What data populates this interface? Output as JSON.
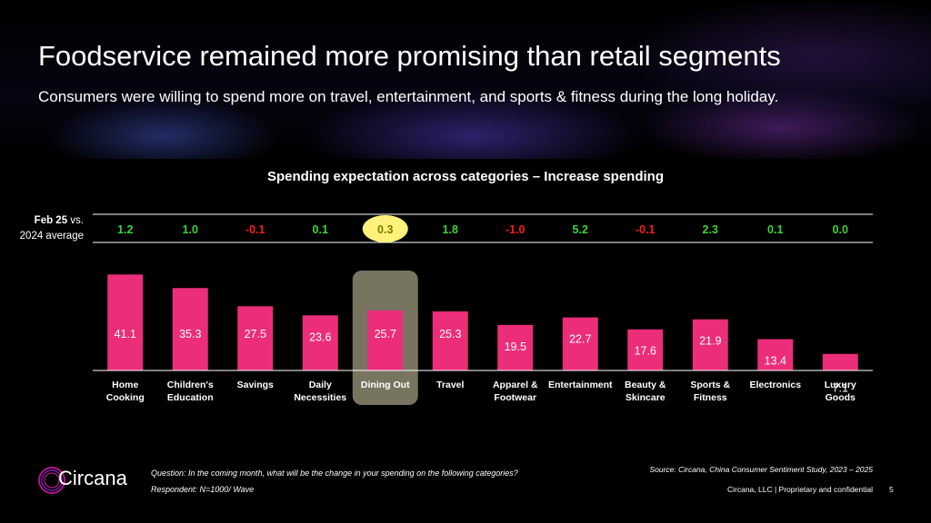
{
  "header": {
    "title": "Foodservice remained more promising than retail segments",
    "subtitle": "Consumers were willing to spend more on travel, entertainment, and sports & fitness during the long holiday."
  },
  "comparison": {
    "label_bold": "Feb 25",
    "label_rest": " vs.",
    "label_line2": "2024 average"
  },
  "chart_data": {
    "type": "bar",
    "title": "Spending expectation across categories – Increase spending",
    "categories": [
      [
        "Home",
        "Cooking"
      ],
      [
        "Children's",
        "Education"
      ],
      [
        "Savings"
      ],
      [
        "Daily",
        "Necessities"
      ],
      [
        "Dining Out"
      ],
      [
        "Travel"
      ],
      [
        "Apparel &",
        "Footwear"
      ],
      [
        "Entertainment"
      ],
      [
        "Beauty &",
        "Skincare"
      ],
      [
        "Sports &",
        "Fitness"
      ],
      [
        "Electronics"
      ],
      [
        "Luxury",
        "Goods"
      ]
    ],
    "values": [
      41.1,
      35.3,
      27.5,
      23.6,
      25.7,
      25.3,
      19.5,
      22.7,
      17.6,
      21.9,
      13.4,
      7.1
    ],
    "value_labels": [
      "41.1",
      "35.3",
      "27.5",
      "23.6",
      "25.7",
      "25.3",
      "19.5",
      "22.7",
      "17.6",
      "21.9",
      "13.4",
      "7.1"
    ],
    "change_vs_2024": [
      "1.2",
      "1.0",
      "-0.1",
      "0.1",
      "0.3",
      "1.8",
      "-1.0",
      "5.2",
      "-0.1",
      "2.3",
      "0.1",
      "0.0"
    ],
    "highlight_index": 4,
    "ylim": [
      0,
      42
    ],
    "colors": {
      "bar": "#ec2d7a",
      "positive": "#3ad43a",
      "negative": "#ff1a1a",
      "highlight_box": "#777460",
      "highlight_circle": "#fff27a"
    }
  },
  "footnotes": {
    "question": "Question: In the coming month, what will be the change in your spending on the following categories?",
    "respondent": "Respondent: N=1000/ Wave",
    "source": "Source: Circana, China Consumer Sentiment Study, 2023 – 2025",
    "company": "Circana, LLC  |  Proprietary and confidential",
    "page": "5"
  },
  "logo": {
    "text": "Circana"
  }
}
